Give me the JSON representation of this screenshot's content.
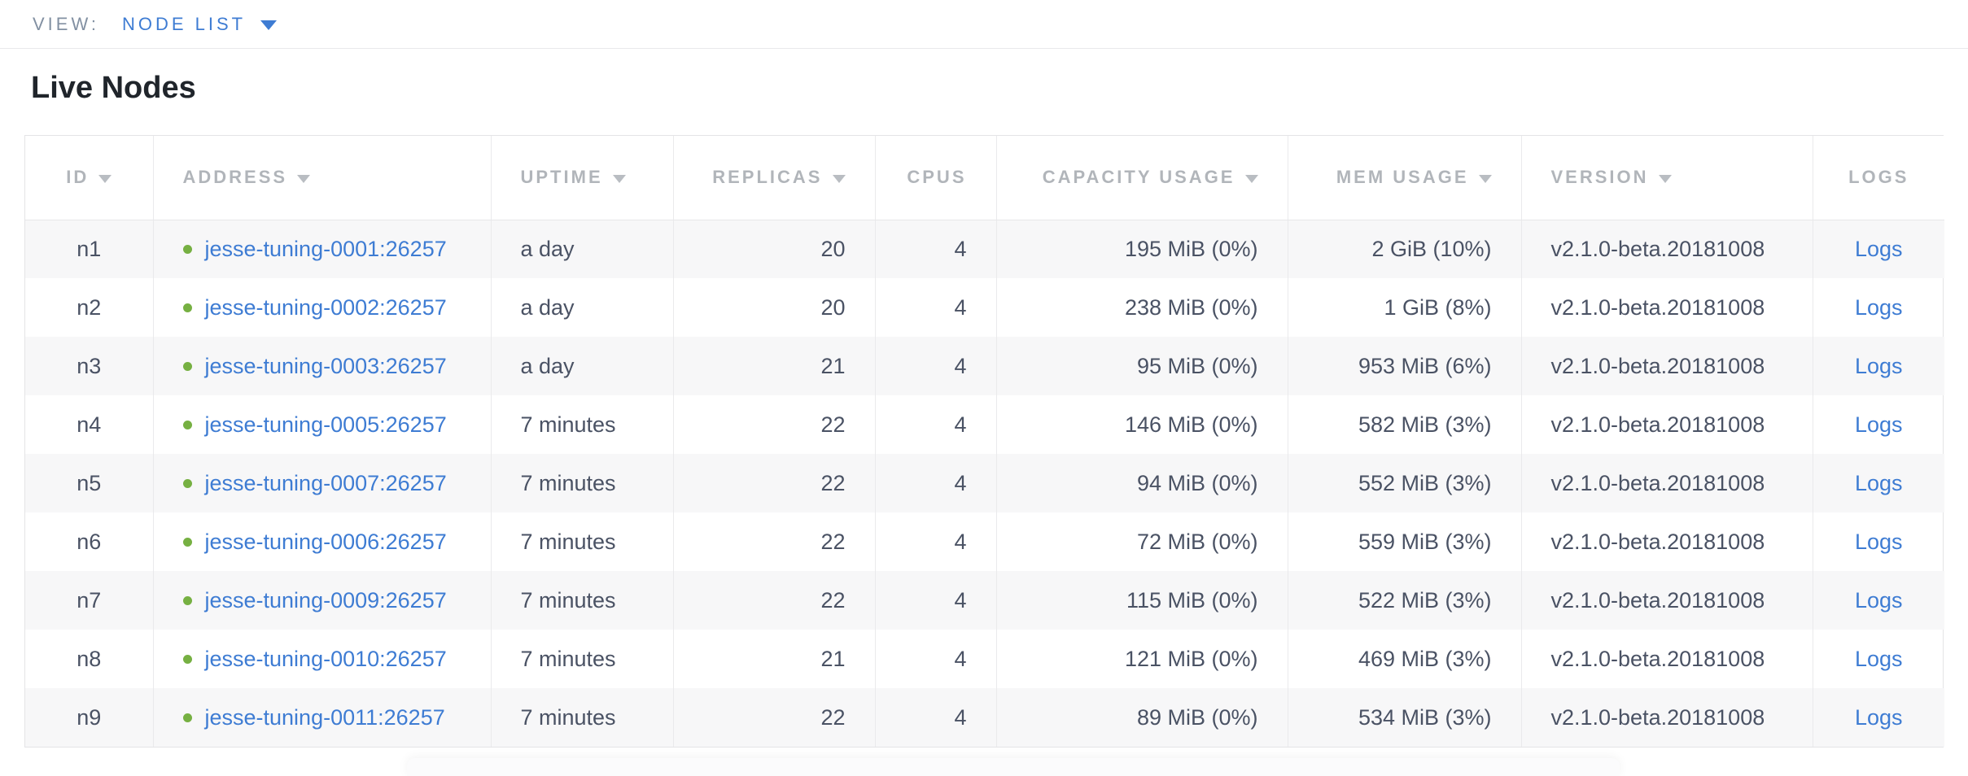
{
  "view_bar": {
    "label": "VIEW:",
    "selected": "NODE LIST"
  },
  "page": {
    "title": "Live Nodes"
  },
  "colors": {
    "link_blue": "#3e7cd3",
    "live_dot_green": "#76b042",
    "header_gray": "#b1b5ba",
    "cell_text": "#4a5264",
    "row_shade": "#f7f7f8"
  },
  "table": {
    "columns": [
      {
        "key": "id",
        "label": "ID",
        "sortable": true,
        "align": "center"
      },
      {
        "key": "address",
        "label": "ADDRESS",
        "sortable": true,
        "align": "left"
      },
      {
        "key": "uptime",
        "label": "UPTIME",
        "sortable": true,
        "align": "left"
      },
      {
        "key": "replicas",
        "label": "REPLICAS",
        "sortable": true,
        "align": "right"
      },
      {
        "key": "cpus",
        "label": "CPUS",
        "sortable": false,
        "align": "right"
      },
      {
        "key": "capacity",
        "label": "CAPACITY USAGE",
        "sortable": true,
        "align": "right"
      },
      {
        "key": "mem",
        "label": "MEM USAGE",
        "sortable": true,
        "align": "right"
      },
      {
        "key": "version",
        "label": "VERSION",
        "sortable": true,
        "align": "left"
      },
      {
        "key": "logs",
        "label": "LOGS",
        "sortable": false,
        "align": "center"
      }
    ],
    "rows": [
      {
        "id": "n1",
        "status": "live",
        "address": "jesse-tuning-0001:26257",
        "uptime": "a day",
        "replicas": "20",
        "cpus": "4",
        "capacity": "195 MiB (0%)",
        "mem": "2 GiB (10%)",
        "version": "v2.1.0-beta.20181008",
        "logs": "Logs"
      },
      {
        "id": "n2",
        "status": "live",
        "address": "jesse-tuning-0002:26257",
        "uptime": "a day",
        "replicas": "20",
        "cpus": "4",
        "capacity": "238 MiB (0%)",
        "mem": "1 GiB (8%)",
        "version": "v2.1.0-beta.20181008",
        "logs": "Logs"
      },
      {
        "id": "n3",
        "status": "live",
        "address": "jesse-tuning-0003:26257",
        "uptime": "a day",
        "replicas": "21",
        "cpus": "4",
        "capacity": "95 MiB (0%)",
        "mem": "953 MiB (6%)",
        "version": "v2.1.0-beta.20181008",
        "logs": "Logs"
      },
      {
        "id": "n4",
        "status": "live",
        "address": "jesse-tuning-0005:26257",
        "uptime": "7 minutes",
        "replicas": "22",
        "cpus": "4",
        "capacity": "146 MiB (0%)",
        "mem": "582 MiB (3%)",
        "version": "v2.1.0-beta.20181008",
        "logs": "Logs"
      },
      {
        "id": "n5",
        "status": "live",
        "address": "jesse-tuning-0007:26257",
        "uptime": "7 minutes",
        "replicas": "22",
        "cpus": "4",
        "capacity": "94 MiB (0%)",
        "mem": "552 MiB (3%)",
        "version": "v2.1.0-beta.20181008",
        "logs": "Logs"
      },
      {
        "id": "n6",
        "status": "live",
        "address": "jesse-tuning-0006:26257",
        "uptime": "7 minutes",
        "replicas": "22",
        "cpus": "4",
        "capacity": "72 MiB (0%)",
        "mem": "559 MiB (3%)",
        "version": "v2.1.0-beta.20181008",
        "logs": "Logs"
      },
      {
        "id": "n7",
        "status": "live",
        "address": "jesse-tuning-0009:26257",
        "uptime": "7 minutes",
        "replicas": "22",
        "cpus": "4",
        "capacity": "115 MiB (0%)",
        "mem": "522 MiB (3%)",
        "version": "v2.1.0-beta.20181008",
        "logs": "Logs"
      },
      {
        "id": "n8",
        "status": "live",
        "address": "jesse-tuning-0010:26257",
        "uptime": "7 minutes",
        "replicas": "21",
        "cpus": "4",
        "capacity": "121 MiB (0%)",
        "mem": "469 MiB (3%)",
        "version": "v2.1.0-beta.20181008",
        "logs": "Logs"
      },
      {
        "id": "n9",
        "status": "live",
        "address": "jesse-tuning-0011:26257",
        "uptime": "7 minutes",
        "replicas": "22",
        "cpus": "4",
        "capacity": "89 MiB (0%)",
        "mem": "534 MiB (3%)",
        "version": "v2.1.0-beta.20181008",
        "logs": "Logs"
      }
    ]
  }
}
